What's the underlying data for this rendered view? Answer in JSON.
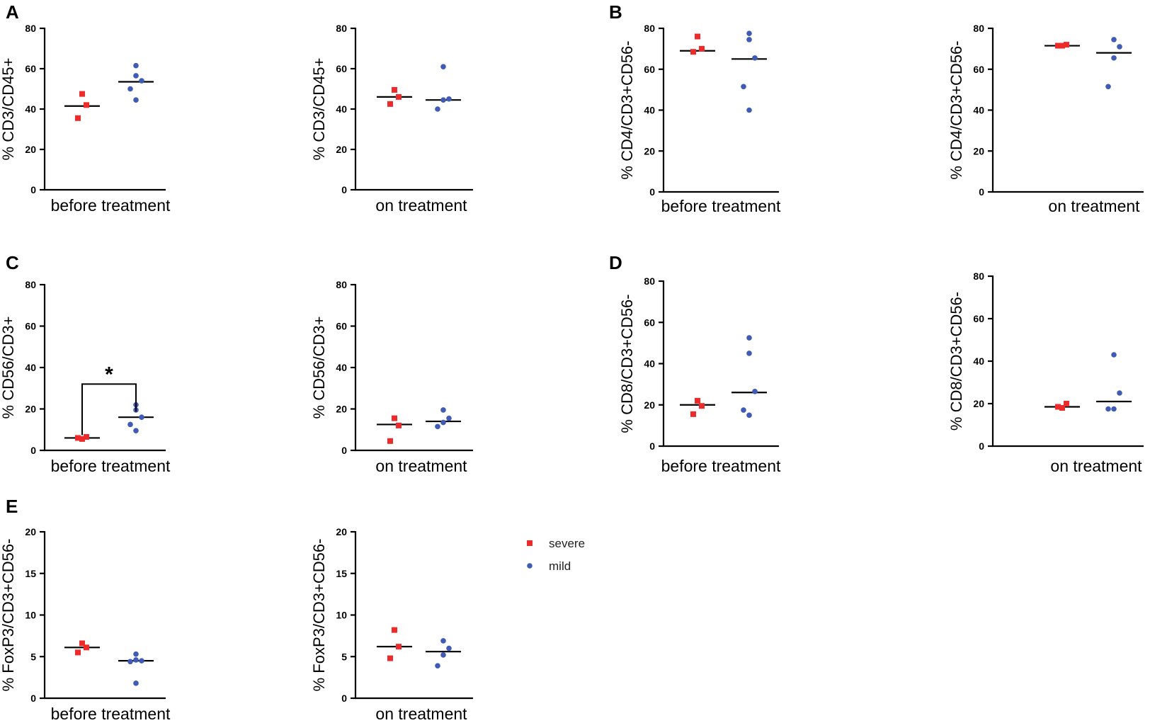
{
  "colors": {
    "severe": "#ee2b2b",
    "mild": "#3f5bb5"
  },
  "legend": [
    {
      "label": "severe",
      "series": "severe",
      "marker": "square"
    },
    {
      "label": "mild",
      "series": "mild",
      "marker": "circle"
    }
  ],
  "panel_letters": [
    "A",
    "B",
    "C",
    "D",
    "E"
  ],
  "chart_data": [
    {
      "id": "A1",
      "panel": "A",
      "type": "scatter",
      "ylabel": "% CD3/CD45+",
      "xlabel": "before treatment",
      "ylim": [
        0,
        80
      ],
      "yticks": [
        0,
        20,
        40,
        60,
        80
      ],
      "series": [
        {
          "name": "severe",
          "values": [
            47.5,
            42,
            35.5
          ],
          "median": 41.5
        },
        {
          "name": "mild",
          "values": [
            61.5,
            56.5,
            54,
            50,
            44.5
          ],
          "median": 53.5
        }
      ]
    },
    {
      "id": "A2",
      "panel": "A",
      "type": "scatter",
      "ylabel": "% CD3/CD45+",
      "xlabel": "on treatment",
      "ylim": [
        0,
        80
      ],
      "yticks": [
        0,
        20,
        40,
        60,
        80
      ],
      "series": [
        {
          "name": "severe",
          "values": [
            49.5,
            46,
            42.5
          ],
          "median": 46
        },
        {
          "name": "mild",
          "values": [
            61,
            45,
            44.5,
            40
          ],
          "median": 44.5
        }
      ]
    },
    {
      "id": "B1",
      "panel": "B",
      "type": "scatter",
      "ylabel": "% CD4/CD3+CD56-",
      "xlabel": "before treatment",
      "ylim": [
        0,
        80
      ],
      "yticks": [
        0,
        20,
        40,
        60,
        80
      ],
      "series": [
        {
          "name": "severe",
          "values": [
            76,
            70,
            68.5
          ],
          "median": 69
        },
        {
          "name": "mild",
          "values": [
            77.5,
            74.5,
            65.5,
            51.5,
            40
          ],
          "median": 65
        }
      ]
    },
    {
      "id": "B2",
      "panel": "B",
      "type": "scatter",
      "ylabel": "% CD4/CD3+CD56-",
      "xlabel": "on treatment",
      "ylim": [
        0,
        80
      ],
      "yticks": [
        0,
        20,
        40,
        60,
        80
      ],
      "series": [
        {
          "name": "severe",
          "values": [
            71.5,
            72,
            71.5
          ],
          "median": 71.5
        },
        {
          "name": "mild",
          "values": [
            74.5,
            71,
            65.5,
            51.5
          ],
          "median": 68
        }
      ]
    },
    {
      "id": "C1",
      "panel": "C",
      "type": "scatter",
      "ylabel": "% CD56/CD3+",
      "xlabel": "before treatment",
      "ylim": [
        0,
        80
      ],
      "yticks": [
        0,
        20,
        40,
        60,
        80
      ],
      "series": [
        {
          "name": "severe",
          "values": [
            5.5,
            6.5,
            6
          ],
          "median": 6
        },
        {
          "name": "mild",
          "values": [
            22,
            19.5,
            16,
            12.5,
            9.5
          ],
          "median": 16
        }
      ],
      "significance": {
        "label": "*",
        "between": [
          "severe",
          "mild"
        ]
      }
    },
    {
      "id": "C2",
      "panel": "C",
      "type": "scatter",
      "ylabel": "% CD56/CD3+",
      "xlabel": "on treatment",
      "ylim": [
        0,
        80
      ],
      "yticks": [
        0,
        20,
        40,
        60,
        80
      ],
      "series": [
        {
          "name": "severe",
          "values": [
            15.5,
            12,
            4.5
          ],
          "median": 12.5
        },
        {
          "name": "mild",
          "values": [
            19.5,
            15.5,
            13.5,
            11.5
          ],
          "median": 14
        }
      ]
    },
    {
      "id": "D1",
      "panel": "D",
      "type": "scatter",
      "ylabel": "% CD8/CD3+CD56-",
      "xlabel": "before treatment",
      "ylim": [
        0,
        80
      ],
      "yticks": [
        0,
        20,
        40,
        60,
        80
      ],
      "series": [
        {
          "name": "severe",
          "values": [
            22,
            19.5,
            15.5
          ],
          "median": 20
        },
        {
          "name": "mild",
          "values": [
            52.5,
            45,
            26.5,
            17.5,
            15
          ],
          "median": 26
        }
      ]
    },
    {
      "id": "D2",
      "panel": "D",
      "type": "scatter",
      "ylabel": "% CD8/CD3+CD56-",
      "xlabel": "on treatment",
      "ylim": [
        0,
        80
      ],
      "yticks": [
        0,
        20,
        40,
        60,
        80
      ],
      "series": [
        {
          "name": "severe",
          "values": [
            18,
            20,
            18.5
          ],
          "median": 18.5
        },
        {
          "name": "mild",
          "values": [
            43,
            25,
            17.5,
            17.5
          ],
          "median": 21
        }
      ]
    },
    {
      "id": "E1",
      "panel": "E",
      "type": "scatter",
      "ylabel": "% FoxP3/CD3+CD56-",
      "xlabel": "before treatment",
      "ylim": [
        0,
        20
      ],
      "yticks": [
        0,
        5,
        10,
        15,
        20
      ],
      "series": [
        {
          "name": "severe",
          "values": [
            6.6,
            6.1,
            5.5
          ],
          "median": 6.1
        },
        {
          "name": "mild",
          "values": [
            5.3,
            4.6,
            4.5,
            4.4,
            1.8
          ],
          "median": 4.5
        }
      ]
    },
    {
      "id": "E2",
      "panel": "E",
      "type": "scatter",
      "ylabel": "% FoxP3/CD3+CD56-",
      "xlabel": "on treatment",
      "ylim": [
        0,
        20
      ],
      "yticks": [
        0,
        5,
        10,
        15,
        20
      ],
      "series": [
        {
          "name": "severe",
          "values": [
            8.2,
            6.2,
            4.8
          ],
          "median": 6.2
        },
        {
          "name": "mild",
          "values": [
            6.9,
            6,
            5.2,
            3.9
          ],
          "median": 5.6
        }
      ]
    }
  ]
}
